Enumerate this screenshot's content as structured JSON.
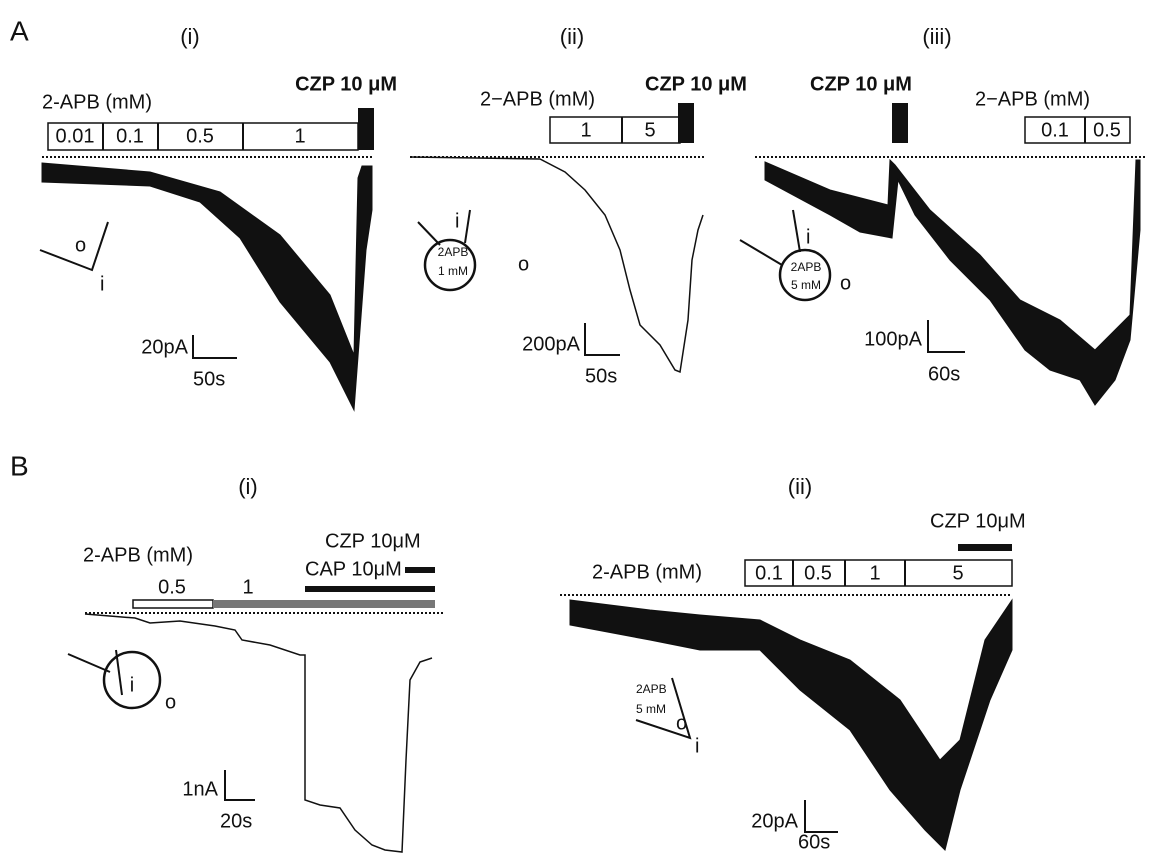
{
  "panels": [
    {
      "label": "A",
      "subpanels": [
        {
          "label": "(i)",
          "drug_label": "2-APB (mM)",
          "concentrations": [
            "0.01",
            "0.1",
            "0.5",
            "1"
          ],
          "czp": "CZP 10 μM",
          "scale_y": "20pA",
          "scale_x": "50s",
          "inset": [
            "o",
            "i"
          ]
        },
        {
          "label": "(ii)",
          "drug_label": "2−APB (mM)",
          "concentrations": [
            "1",
            "5"
          ],
          "czp": "CZP 10 μM",
          "scale_y": "200pA",
          "scale_x": "50s",
          "inset": [
            "i",
            "2APB",
            "1 mM",
            "o"
          ]
        },
        {
          "label": "(iii)",
          "drug_label": "2−APB (mM)",
          "concentrations": [
            "0.1",
            "0.5"
          ],
          "czp": "CZP 10 μM",
          "scale_y": "100pA",
          "scale_x": "60s",
          "inset": [
            "i",
            "2APB",
            "5 mM",
            "o"
          ]
        }
      ]
    },
    {
      "label": "B",
      "subpanels": [
        {
          "label": "(i)",
          "drug_label": "2-APB (mM)",
          "concentrations": [
            "0.5",
            "1"
          ],
          "czp": "CZP 10μM",
          "cap": "CAP 10μM",
          "scale_y": "1nA",
          "scale_x": "20s",
          "inset": [
            "i",
            "o"
          ]
        },
        {
          "label": "(ii)",
          "drug_label": "2-APB (mM)",
          "concentrations": [
            "0.1",
            "0.5",
            "1",
            "5"
          ],
          "czp": "CZP 10μM",
          "scale_y": "20pA",
          "scale_x": "60s",
          "inset": [
            "2APB",
            "5 mM",
            "o",
            "i"
          ]
        }
      ]
    }
  ]
}
